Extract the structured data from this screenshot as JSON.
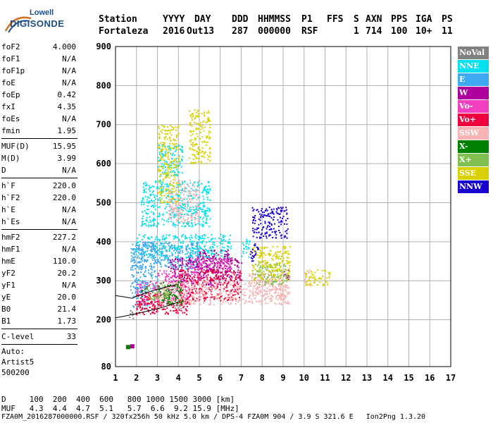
{
  "logo": {
    "top": "Lowell",
    "bottom": "DIGISONDE"
  },
  "header": {
    "labels": [
      "Station",
      "YYYY",
      "DAY",
      "DDD",
      "HHMMSS",
      "P1",
      "FFS",
      "S",
      "AXN",
      "PPS",
      "IGA",
      "PS"
    ],
    "values": [
      "Fortaleza",
      "2016",
      "Out13",
      "287",
      "000000",
      "RSF",
      "",
      "1",
      "714",
      "100",
      "10+",
      "11"
    ]
  },
  "params_group1": [
    {
      "k": "foF2",
      "v": "4.000"
    },
    {
      "k": "foF1",
      "v": "N/A"
    },
    {
      "k": "foF1p",
      "v": "N/A"
    },
    {
      "k": "foE",
      "v": "N/A"
    },
    {
      "k": "foEp",
      "v": "0.42"
    },
    {
      "k": "fxI",
      "v": "4.35"
    },
    {
      "k": "foEs",
      "v": "N/A"
    },
    {
      "k": "fmin",
      "v": "1.95"
    }
  ],
  "params_group2": [
    {
      "k": "MUF(D)",
      "v": "15.95"
    },
    {
      "k": "M(D)",
      "v": "3.99"
    },
    {
      "k": "D",
      "v": "N/A"
    }
  ],
  "params_group3": [
    {
      "k": "h`F",
      "v": "220.0"
    },
    {
      "k": "h`F2",
      "v": "220.0"
    },
    {
      "k": "h`E",
      "v": "N/A"
    },
    {
      "k": "h`Es",
      "v": "N/A"
    }
  ],
  "params_group4": [
    {
      "k": "hmF2",
      "v": "227.2"
    },
    {
      "k": "hmF1",
      "v": "N/A"
    },
    {
      "k": "hmE",
      "v": "110.0"
    },
    {
      "k": "yF2",
      "v": "20.2"
    },
    {
      "k": "yF1",
      "v": "N/A"
    },
    {
      "k": "yE",
      "v": "20.0"
    },
    {
      "k": "B0",
      "v": "21.4"
    },
    {
      "k": "B1",
      "v": "1.73"
    }
  ],
  "params_group5": [
    {
      "k": "C-level",
      "v": "33"
    }
  ],
  "auto": {
    "l1": "Auto:",
    "l2": "Artist5",
    "l3": "500200"
  },
  "legend": [
    {
      "label": "NoVal",
      "color": "#808080"
    },
    {
      "label": "NNE",
      "color": "#00e0f0"
    },
    {
      "label": "E",
      "color": "#3ea8f0"
    },
    {
      "label": "W",
      "color": "#b0009c"
    },
    {
      "label": "Vo-",
      "color": "#f040c0"
    },
    {
      "label": "Vo+",
      "color": "#f0003c"
    },
    {
      "label": "SSW",
      "color": "#f8b4b4"
    },
    {
      "label": "X-",
      "color": "#008000"
    },
    {
      "label": "X+",
      "color": "#80c050"
    },
    {
      "label": "SSE",
      "color": "#d8d000"
    },
    {
      "label": "NNW",
      "color": "#1800d0"
    }
  ],
  "bottom": {
    "d_row": "D     100  200  400  600   800 1000 1500 3000 [km]",
    "muf_row": "MUF   4.3  4.4  4.7  5.1   5.7  6.6  9.2 15.9 [MHz]",
    "footer": "FZA0M_2016287000000.RSF / 320fx256h 50 kHz 5.0 km / DPS-4 FZA0M 904 / 3.9 S 321.6 E   Ion2Png 1.3.20"
  },
  "chart_data": {
    "type": "scatter",
    "title": "",
    "xlabel": "",
    "ylabel": "",
    "xlim": [
      1,
      17
    ],
    "ylim": [
      80,
      900
    ],
    "x_ticks": [
      1,
      2,
      3,
      4,
      5,
      6,
      7,
      8,
      9,
      10,
      11,
      12,
      13,
      14,
      15,
      16,
      17
    ],
    "y_ticks": [
      80,
      200,
      300,
      400,
      500,
      600,
      700,
      800,
      900
    ],
    "grid": true,
    "legend_position": "right",
    "series": [
      {
        "name": "NNE",
        "color": "#00e0f0",
        "regions": [
          [
            1.9,
            6.5,
            360,
            420
          ],
          [
            2.2,
            5.5,
            440,
            560
          ],
          [
            3.0,
            4.2,
            570,
            650
          ],
          [
            7.0,
            7.4,
            360,
            410
          ]
        ]
      },
      {
        "name": "E",
        "color": "#3ea8f0",
        "regions": [
          [
            1.7,
            3.0,
            270,
            400
          ],
          [
            2.0,
            5.0,
            330,
            400
          ],
          [
            1.8,
            2.5,
            230,
            300
          ]
        ]
      },
      {
        "name": "W",
        "color": "#b0009c",
        "regions": [
          [
            3.5,
            7.0,
            290,
            360
          ],
          [
            4.8,
            6.5,
            320,
            380
          ],
          [
            9.0,
            9.3,
            300,
            330
          ]
        ]
      },
      {
        "name": "Vo-",
        "color": "#f040c0",
        "regions": [
          [
            2.0,
            4.5,
            240,
            300
          ],
          [
            4.5,
            6.5,
            330,
            360
          ],
          [
            3.0,
            5.0,
            300,
            330
          ]
        ]
      },
      {
        "name": "Vo+",
        "color": "#f0003c",
        "regions": [
          [
            1.9,
            4.5,
            215,
            270
          ],
          [
            4.0,
            7.0,
            250,
            330
          ],
          [
            2.2,
            3.2,
            225,
            250
          ]
        ]
      },
      {
        "name": "SSW",
        "color": "#f8b4b4",
        "regions": [
          [
            3.0,
            9.3,
            240,
            300
          ],
          [
            7.3,
            9.3,
            260,
            320
          ],
          [
            3.5,
            5.0,
            450,
            560
          ],
          [
            10.0,
            10.3,
            290,
            330
          ]
        ]
      },
      {
        "name": "X-",
        "color": "#008000",
        "regions": [
          [
            3.0,
            4.2,
            240,
            300
          ],
          [
            2.2,
            2.5,
            260,
            290
          ]
        ]
      },
      {
        "name": "X+",
        "color": "#80c050",
        "regions": [
          [
            2.5,
            3.5,
            250,
            290
          ],
          [
            7.5,
            9.2,
            290,
            350
          ]
        ]
      },
      {
        "name": "SSE",
        "color": "#d8d000",
        "regions": [
          [
            7.5,
            9.3,
            300,
            390
          ],
          [
            10.0,
            11.2,
            290,
            330
          ],
          [
            3.0,
            4.0,
            500,
            700
          ],
          [
            4.5,
            5.5,
            600,
            740
          ]
        ]
      },
      {
        "name": "NNW",
        "color": "#1800d0",
        "regions": [
          [
            7.5,
            9.2,
            410,
            490
          ],
          [
            7.4,
            7.8,
            350,
            400
          ]
        ]
      },
      {
        "name": "NoVal",
        "color": "#808080",
        "regions": [
          [
            1.5,
            1.9,
            205,
            225
          ],
          [
            3.8,
            4.2,
            230,
            240
          ]
        ]
      }
    ],
    "small_marks": [
      {
        "x": 1.6,
        "y": 130,
        "color": "#008000"
      },
      {
        "x": 1.8,
        "y": 132,
        "color": "#b0009c"
      }
    ],
    "profile_curve": [
      [
        1.0,
        205
      ],
      [
        1.5,
        210
      ],
      [
        2.0,
        216
      ],
      [
        2.5,
        222
      ],
      [
        3.0,
        228
      ],
      [
        3.5,
        236
      ],
      [
        4.0,
        245
      ]
    ],
    "profile_curve_upper": [
      [
        1.0,
        262
      ],
      [
        1.5,
        258
      ],
      [
        1.8,
        255
      ],
      [
        2.0,
        260
      ],
      [
        2.5,
        270
      ],
      [
        3.0,
        278
      ],
      [
        3.5,
        285
      ],
      [
        3.9,
        290
      ]
    ]
  }
}
